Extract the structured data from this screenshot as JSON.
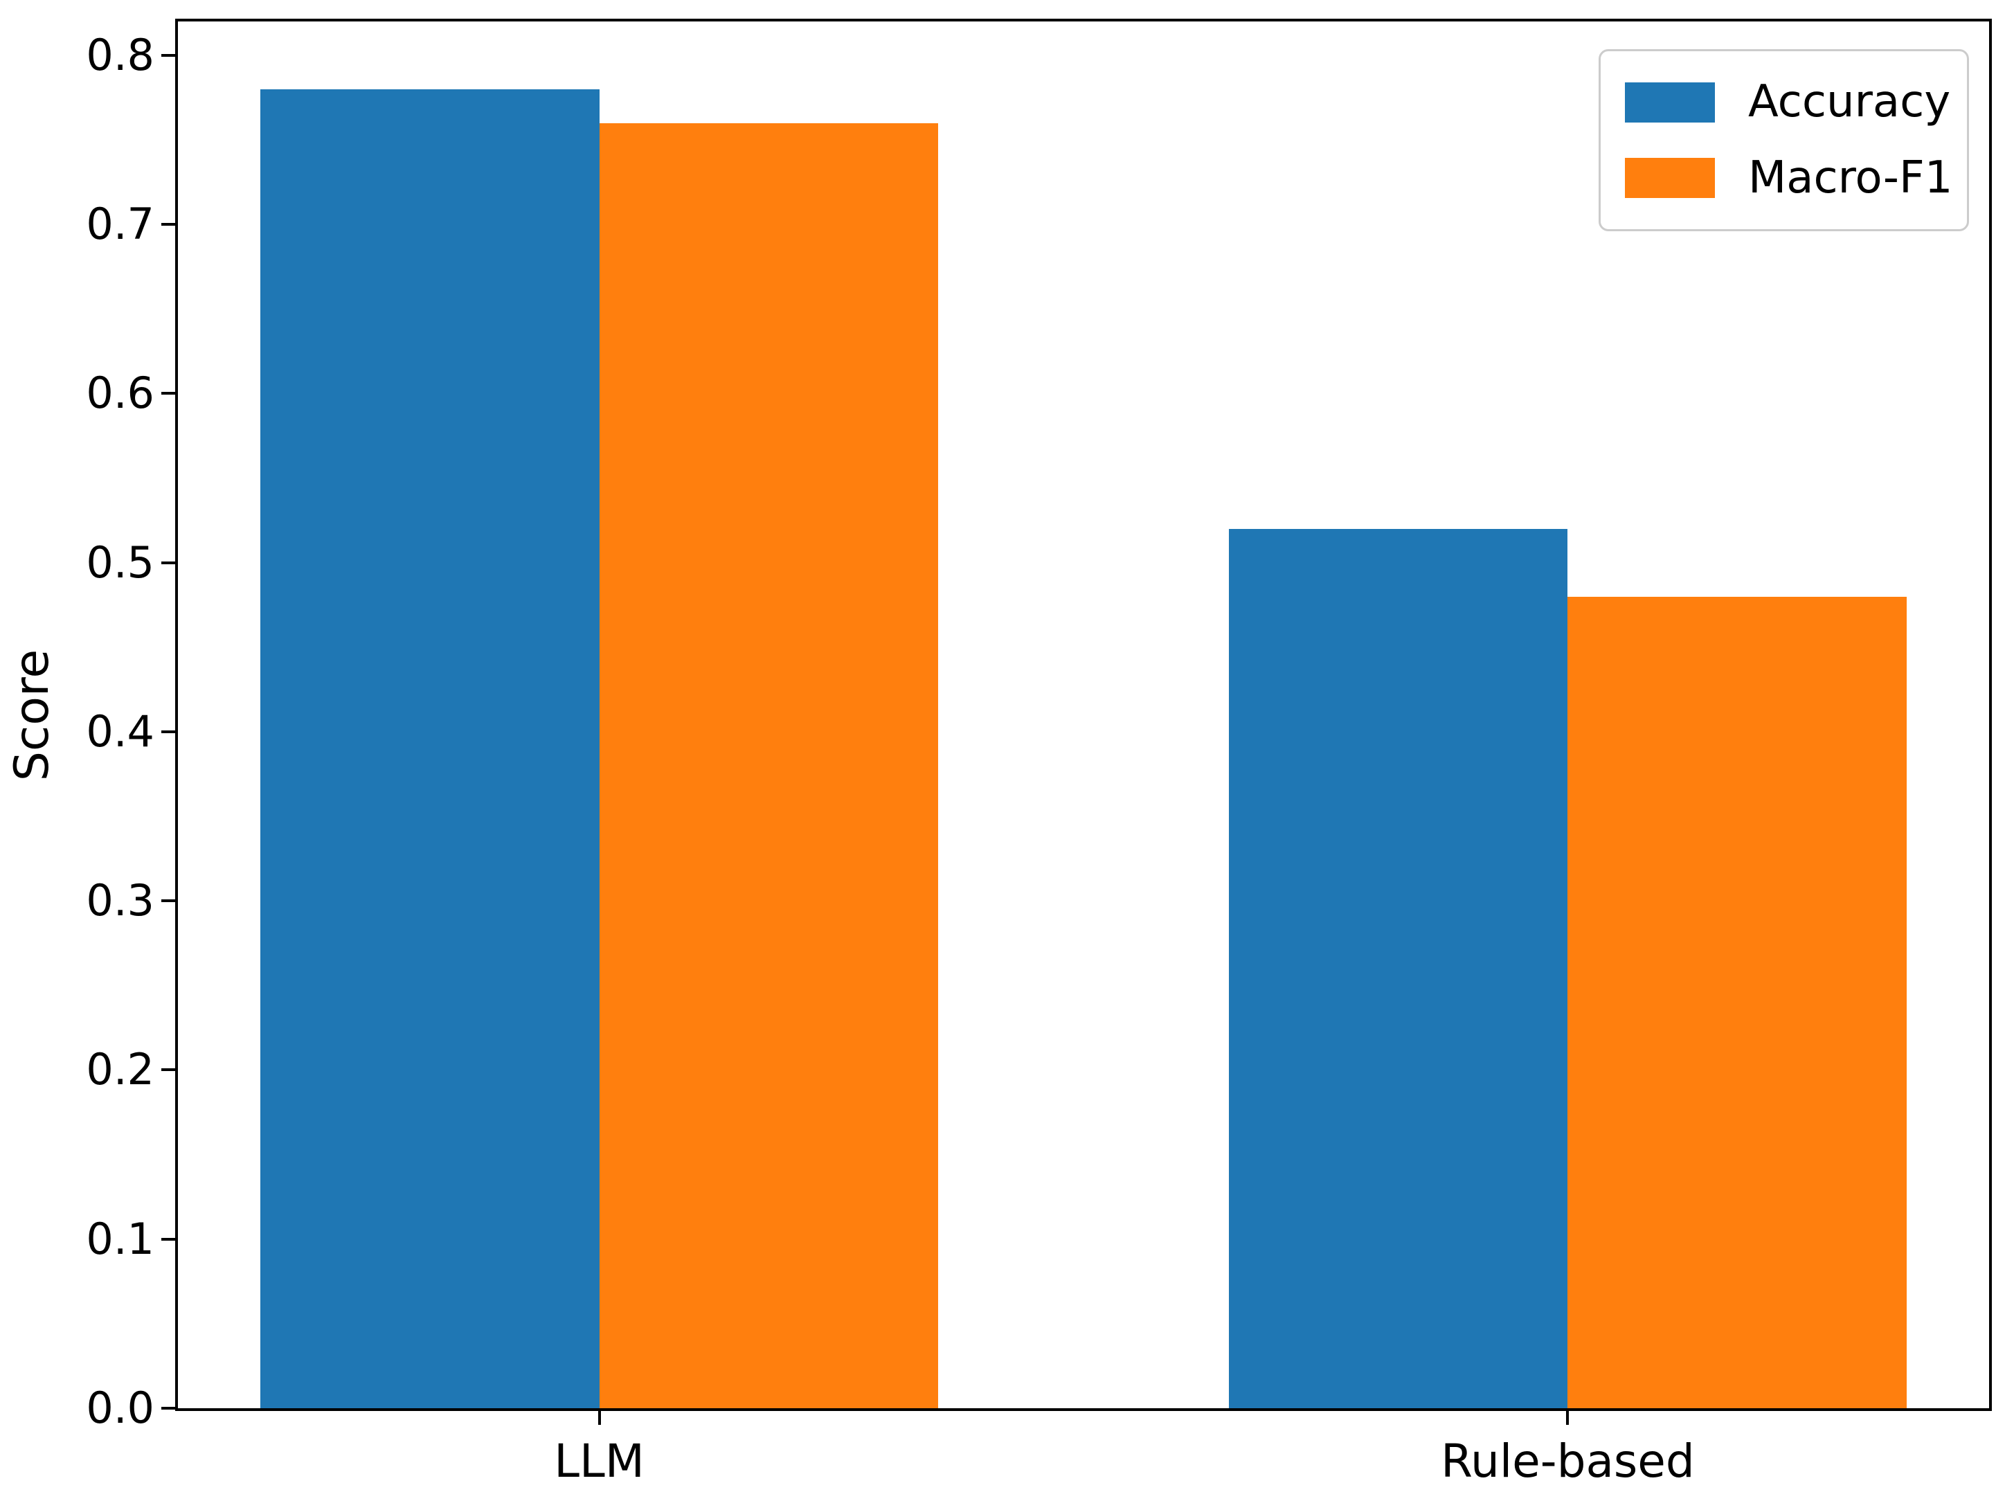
{
  "figure": {
    "background": "#ffffff",
    "axis_color": "#000000"
  },
  "chart_data": {
    "type": "bar",
    "title": "",
    "xlabel": "",
    "ylabel": "Score",
    "categories": [
      "LLM",
      "Rule-based"
    ],
    "series": [
      {
        "name": "Accuracy",
        "color": "#1f77b4",
        "values": [
          0.78,
          0.52
        ]
      },
      {
        "name": "Macro-F1",
        "color": "#ff7f0e",
        "values": [
          0.76,
          0.48
        ]
      }
    ],
    "ylim": [
      0,
      0.82
    ],
    "yticks": [
      0.0,
      0.1,
      0.2,
      0.3,
      0.4,
      0.5,
      0.6,
      0.7,
      0.8
    ],
    "ytick_labels": [
      "0.0",
      "0.1",
      "0.2",
      "0.3",
      "0.4",
      "0.5",
      "0.6",
      "0.7",
      "0.8"
    ],
    "grid": false,
    "legend": {
      "position": "upper right",
      "entries": [
        {
          "label": "Accuracy",
          "color": "#1f77b4"
        },
        {
          "label": "Macro-F1",
          "color": "#ff7f0e"
        }
      ]
    }
  }
}
